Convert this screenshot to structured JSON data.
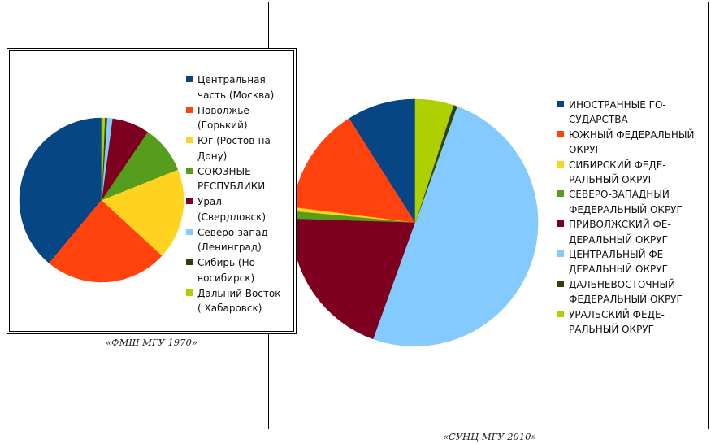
{
  "chart_data": [
    {
      "type": "pie",
      "caption": "«ФМШ МГУ 1970»",
      "slices": [
        {
          "label": "Центральная\nчасть (Москва)",
          "value": 37,
          "color": "#064685"
        },
        {
          "label": "Поволжье\n(Горький)",
          "value": 23,
          "color": "#FF420E"
        },
        {
          "label": "Юг  (Ростов-на-\nДону)",
          "value": 17,
          "color": "#FFD320"
        },
        {
          "label": "СОЮЗНЫЕ\nРЕСПУБЛИКИ",
          "value": 9,
          "color": "#579D1C"
        },
        {
          "label": "Урал\n(Свердловск)",
          "value": 7,
          "color": "#7E0021"
        },
        {
          "label": "Северо-запад\n(Ленинград)",
          "value": 1,
          "color": "#83CAFF"
        },
        {
          "label": "Сибирь (Но-\nвосибирск)",
          "value": 0.4,
          "color": "#314004"
        },
        {
          "label": "Дальний Восток\n( Хабаровск)",
          "value": 0.6,
          "color": "#AECF00"
        }
      ]
    },
    {
      "type": "pie",
      "caption": "«СУНЦ МГУ 2010»",
      "slices": [
        {
          "label": "ИНОСТРАННЫЕ ГО-\nСУДАРСТВА",
          "value": 9,
          "color": "#064685"
        },
        {
          "label": "ЮЖНЫЙ ФЕДЕРАЛЬНЫЙ\nОКРУГ",
          "value": 14,
          "color": "#FF420E"
        },
        {
          "label": "СИБИРСКИЙ ФЕДЕ-\nРАЛЬНЫЙ ОКРУГ",
          "value": 0.5,
          "color": "#FFD320"
        },
        {
          "label": "СЕВЕРО-ЗАПАДНЫЙ\nФЕДЕРАЛЬНЫЙ ОКРУГ",
          "value": 1,
          "color": "#579D1C"
        },
        {
          "label": "ПРИВОЛЖСКИЙ ФЕ-\nДЕРАЛЬНЫЙ ОКРУГ",
          "value": 20,
          "color": "#7E0021"
        },
        {
          "label": "ЦЕНТРАЛЬНЫЙ ФЕ-\nДЕРАЛЬНЫЙ ОКРУГ",
          "value": 50,
          "color": "#83CAFF"
        },
        {
          "label": "ДАЛЬНЕВОСТОЧНЫЙ\nФЕДЕРАЛЬНЫЙ ОКРУГ",
          "value": 0.5,
          "color": "#314004"
        },
        {
          "label": "УРАЛЬСКИЙ ФЕДЕ-\nРАЛЬНЫЙ ОКРУГ",
          "value": 5,
          "color": "#AECF00"
        }
      ]
    }
  ]
}
